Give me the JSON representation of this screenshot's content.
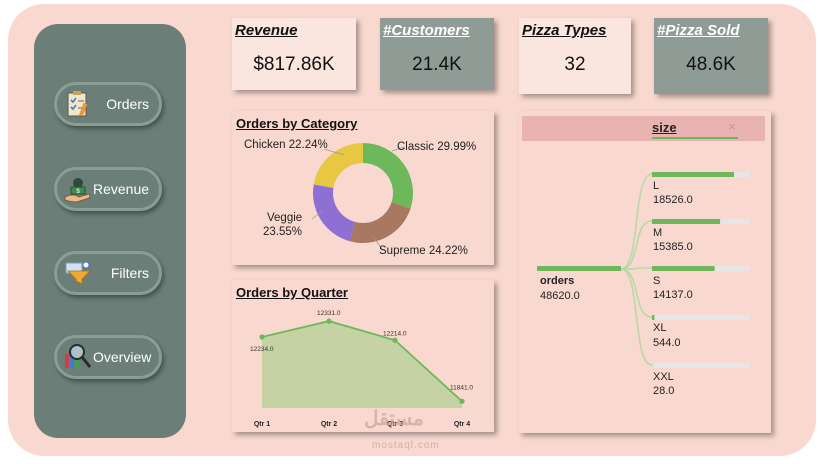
{
  "nav": {
    "items": [
      {
        "label": "Orders",
        "icon": "clipboard-checklist-icon"
      },
      {
        "label": "Revenue",
        "icon": "money-hand-icon"
      },
      {
        "label": "Filters",
        "icon": "funnel-filter-icon"
      },
      {
        "label": "Overview",
        "icon": "magnifier-report-icon"
      }
    ]
  },
  "kpis": [
    {
      "title": "Revenue",
      "value": "$817.86K"
    },
    {
      "title": "#Customers",
      "value": "21.4K"
    },
    {
      "title": "Pizza Types",
      "value": "32"
    },
    {
      "title": "#Pizza Sold",
      "value": "48.6K"
    }
  ],
  "category": {
    "title": "Orders by Category",
    "labels": {
      "chicken": "Chicken 22.24%",
      "classic": "Classic 29.99%",
      "veggie_1": "Veggie",
      "veggie_2": "23.55%",
      "supreme": "Supreme 24.22%"
    }
  },
  "quarter": {
    "title": "Orders by Quarter",
    "value_labels": [
      "12234.0",
      "12331.0",
      "12214.0",
      "11841.0"
    ]
  },
  "size_tree": {
    "header": "size",
    "close": "×",
    "root_label": "orders",
    "root_value": "48620.0",
    "nodes": [
      {
        "label": "L",
        "value": "18526.0"
      },
      {
        "label": "M",
        "value": "15385.0"
      },
      {
        "label": "S",
        "value": "14137.0"
      },
      {
        "label": "XL",
        "value": "544.0"
      },
      {
        "label": "XXL",
        "value": "28.0"
      }
    ]
  },
  "chart_data": [
    {
      "type": "pie",
      "title": "Orders by Category",
      "categories": [
        "Classic",
        "Supreme",
        "Veggie",
        "Chicken"
      ],
      "values": [
        29.99,
        24.22,
        23.55,
        22.24
      ],
      "colors": [
        "#6cb85a",
        "#a87860",
        "#8e6fd3",
        "#e8c842"
      ]
    },
    {
      "type": "area",
      "title": "Orders by Quarter",
      "categories": [
        "Qtr 1",
        "Qtr 2",
        "Qtr 3",
        "Qtr 4"
      ],
      "values": [
        12234,
        12331,
        12214,
        11841
      ],
      "color": "#6cb85a"
    }
  ],
  "watermark": {
    "text": "مستقل",
    "sub": "mostaql.com"
  }
}
